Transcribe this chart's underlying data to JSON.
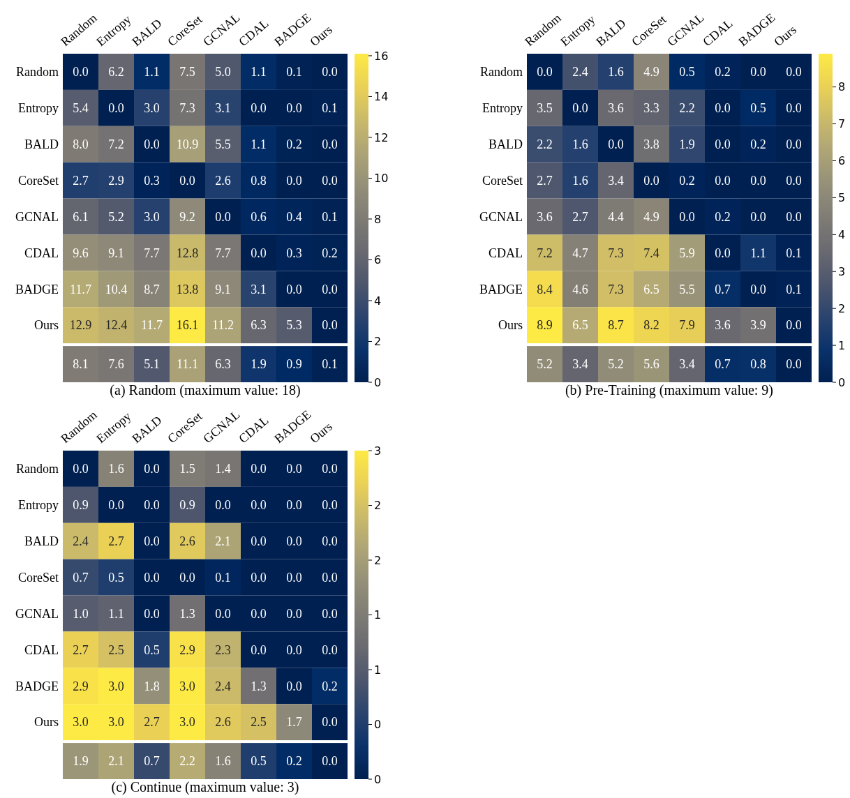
{
  "chart_data": [
    {
      "type": "heatmap",
      "categories": [
        "Random",
        "Entropy",
        "BALD",
        "CoreSet",
        "GCNAL",
        "CDAL",
        "BADGE",
        "Ours"
      ],
      "y_categories": [
        "Random",
        "Entropy",
        "BALD",
        "CoreSet",
        "GCNAL",
        "CDAL",
        "BADGE",
        "Ours",
        null
      ],
      "cells": [
        [
          0.0,
          6.2,
          1.1,
          7.5,
          5.0,
          1.1,
          0.1,
          0.0
        ],
        [
          5.4,
          0.0,
          3.0,
          7.3,
          3.1,
          0.0,
          0.0,
          0.1
        ],
        [
          8.0,
          7.2,
          0.0,
          10.9,
          5.5,
          1.1,
          0.2,
          0.0
        ],
        [
          2.7,
          2.9,
          0.3,
          0.0,
          2.6,
          0.8,
          0.0,
          0.0
        ],
        [
          6.1,
          5.2,
          3.0,
          9.2,
          0.0,
          0.6,
          0.4,
          0.1
        ],
        [
          9.6,
          9.1,
          7.7,
          12.8,
          7.7,
          0.0,
          0.3,
          0.2
        ],
        [
          11.7,
          10.4,
          8.7,
          13.8,
          9.1,
          3.1,
          0.0,
          0.0
        ],
        [
          12.9,
          12.4,
          11.7,
          16.1,
          11.2,
          6.3,
          5.3,
          0.0
        ],
        [
          8.1,
          7.6,
          5.1,
          11.1,
          6.3,
          1.9,
          0.9,
          0.1
        ]
      ],
      "cell_labels": [
        [
          "0.0",
          "6.2",
          "1.1",
          "7.5",
          "5.0",
          "1.1",
          "0.1",
          "0.0"
        ],
        [
          "5.4",
          "0.0",
          "3.0",
          "7.3",
          "3.1",
          "0.0",
          "0.0",
          "0.1"
        ],
        [
          "8.0",
          "7.2",
          "0.0",
          "10.9",
          "5.5",
          "1.1",
          "0.2",
          "0.0"
        ],
        [
          "2.7",
          "2.9",
          "0.3",
          "0.0",
          "2.6",
          "0.8",
          "0.0",
          "0.0"
        ],
        [
          "6.1",
          "5.2",
          "3.0",
          "9.2",
          "0.0",
          "0.6",
          "0.4",
          "0.1"
        ],
        [
          "9.6",
          "9.1",
          "7.7",
          "12.8",
          "7.7",
          "0.0",
          "0.3",
          "0.2"
        ],
        [
          "11.7",
          "10.4",
          "8.7",
          "13.8",
          "9.1",
          "3.1",
          "0.0",
          "0.0"
        ],
        [
          "12.9",
          "12.4",
          "11.7",
          "16.1",
          "11.2",
          "6.3",
          "5.3",
          "0.0"
        ],
        [
          "8.1",
          "7.6",
          "5.1",
          "11.1",
          "6.3",
          "1.9",
          "0.9",
          "0.1"
        ]
      ],
      "clim": [
        0,
        16.1
      ],
      "cticks": [
        0,
        2,
        4,
        6,
        8,
        10,
        12,
        14,
        16
      ],
      "data_labels": true,
      "annotations": [
        "(a) Random (maximum value: 18)"
      ]
    },
    {
      "type": "heatmap",
      "categories": [
        "Random",
        "Entropy",
        "BALD",
        "CoreSet",
        "GCNAL",
        "CDAL",
        "BADGE",
        "Ours"
      ],
      "y_categories": [
        "Random",
        "Entropy",
        "BALD",
        "CoreSet",
        "GCNAL",
        "CDAL",
        "BADGE",
        "Ours",
        null
      ],
      "cells": [
        [
          0.0,
          2.4,
          1.6,
          4.9,
          0.5,
          0.2,
          0.0,
          0.0
        ],
        [
          3.5,
          0.0,
          3.6,
          3.3,
          2.2,
          0.0,
          0.5,
          0.0
        ],
        [
          2.2,
          1.6,
          0.0,
          3.8,
          1.9,
          0.0,
          0.2,
          0.0
        ],
        [
          2.7,
          1.6,
          3.4,
          0.0,
          0.2,
          0.0,
          0.0,
          0.0
        ],
        [
          3.6,
          2.7,
          4.4,
          4.9,
          0.0,
          0.2,
          0.0,
          0.0
        ],
        [
          7.2,
          4.7,
          7.3,
          7.4,
          5.9,
          0.0,
          1.1,
          0.1
        ],
        [
          8.4,
          4.6,
          7.3,
          6.5,
          5.5,
          0.7,
          0.0,
          0.1
        ],
        [
          8.9,
          6.5,
          8.7,
          8.2,
          7.9,
          3.6,
          3.9,
          0.0
        ],
        [
          5.2,
          3.4,
          5.2,
          5.6,
          3.4,
          0.7,
          0.8,
          0.0
        ]
      ],
      "cell_labels": [
        [
          "0.0",
          "2.4",
          "1.6",
          "4.9",
          "0.5",
          "0.2",
          "0.0",
          "0.0"
        ],
        [
          "3.5",
          "0.0",
          "3.6",
          "3.3",
          "2.2",
          "0.0",
          "0.5",
          "0.0"
        ],
        [
          "2.2",
          "1.6",
          "0.0",
          "3.8",
          "1.9",
          "0.0",
          "0.2",
          "0.0"
        ],
        [
          "2.7",
          "1.6",
          "3.4",
          "0.0",
          "0.2",
          "0.0",
          "0.0",
          "0.0"
        ],
        [
          "3.6",
          "2.7",
          "4.4",
          "4.9",
          "0.0",
          "0.2",
          "0.0",
          "0.0"
        ],
        [
          "7.2",
          "4.7",
          "7.3",
          "7.4",
          "5.9",
          "0.0",
          "1.1",
          "0.1"
        ],
        [
          "8.4",
          "4.6",
          "7.3",
          "6.5",
          "5.5",
          "0.7",
          "0.0",
          "0.1"
        ],
        [
          "8.9",
          "6.5",
          "8.7",
          "8.2",
          "7.9",
          "3.6",
          "3.9",
          "0.0"
        ],
        [
          "5.2",
          "3.4",
          "5.2",
          "5.6",
          "3.4",
          "0.7",
          "0.8",
          "0.0"
        ]
      ],
      "clim": [
        0,
        8.9
      ],
      "cticks": [
        0,
        1,
        2,
        3,
        4,
        5,
        6,
        7,
        8
      ],
      "data_labels": true,
      "annotations": [
        "(b) Pre-Training (maximum value: 9)"
      ]
    },
    {
      "type": "heatmap",
      "categories": [
        "Random",
        "Entropy",
        "BALD",
        "CoreSet",
        "GCNAL",
        "CDAL",
        "BADGE",
        "Ours"
      ],
      "y_categories": [
        "Random",
        "Entropy",
        "BALD",
        "CoreSet",
        "GCNAL",
        "CDAL",
        "BADGE",
        "Ours",
        null
      ],
      "cells": [
        [
          0.0,
          1.6,
          0.0,
          1.5,
          1.4,
          0.0,
          0.0,
          0.0
        ],
        [
          0.9,
          0.0,
          0.0,
          0.9,
          0.0,
          0.0,
          0.0,
          0.0
        ],
        [
          2.4,
          2.7,
          0.0,
          2.6,
          2.1,
          0.0,
          0.0,
          0.0
        ],
        [
          0.7,
          0.5,
          0.0,
          0.0,
          0.1,
          0.0,
          0.0,
          0.0
        ],
        [
          1.0,
          1.1,
          0.0,
          1.3,
          0.0,
          0.0,
          0.0,
          0.0
        ],
        [
          2.7,
          2.5,
          0.5,
          2.9,
          2.3,
          0.0,
          0.0,
          0.0
        ],
        [
          2.9,
          3.0,
          1.8,
          3.0,
          2.4,
          1.3,
          0.0,
          0.2
        ],
        [
          3.0,
          3.0,
          2.7,
          3.0,
          2.6,
          2.5,
          1.7,
          0.0
        ],
        [
          1.9,
          2.1,
          0.7,
          2.2,
          1.6,
          0.5,
          0.2,
          0.0
        ]
      ],
      "cell_labels": [
        [
          "0.0",
          "1.6",
          "0.0",
          "1.5",
          "1.4",
          "0.0",
          "0.0",
          "0.0"
        ],
        [
          "0.9",
          "0.0",
          "0.0",
          "0.9",
          "0.0",
          "0.0",
          "0.0",
          "0.0"
        ],
        [
          "2.4",
          "2.7",
          "0.0",
          "2.6",
          "2.1",
          "0.0",
          "0.0",
          "0.0"
        ],
        [
          "0.7",
          "0.5",
          "0.0",
          "0.0",
          "0.1",
          "0.0",
          "0.0",
          "0.0"
        ],
        [
          "1.0",
          "1.1",
          "0.0",
          "1.3",
          "0.0",
          "0.0",
          "0.0",
          "0.0"
        ],
        [
          "2.7",
          "2.5",
          "0.5",
          "2.9",
          "2.3",
          "0.0",
          "0.0",
          "0.0"
        ],
        [
          "2.9",
          "3.0",
          "1.8",
          "3.0",
          "2.4",
          "1.3",
          "0.0",
          "0.2"
        ],
        [
          "3.0",
          "3.0",
          "2.7",
          "3.0",
          "2.6",
          "2.5",
          "1.7",
          "0.0"
        ],
        [
          "1.9",
          "2.1",
          "0.7",
          "2.2",
          "1.6",
          "0.5",
          "0.2",
          "0.0"
        ]
      ],
      "clim": [
        0,
        3
      ],
      "cticks": [
        0,
        {
          "value": 0.5,
          "label": "0"
        },
        1,
        {
          "value": 1.5,
          "label": "1"
        },
        2,
        {
          "value": 2.5,
          "label": "2"
        },
        3
      ],
      "data_labels": true,
      "annotations": [
        "(c) Continue (maximum value: 3)"
      ]
    }
  ]
}
